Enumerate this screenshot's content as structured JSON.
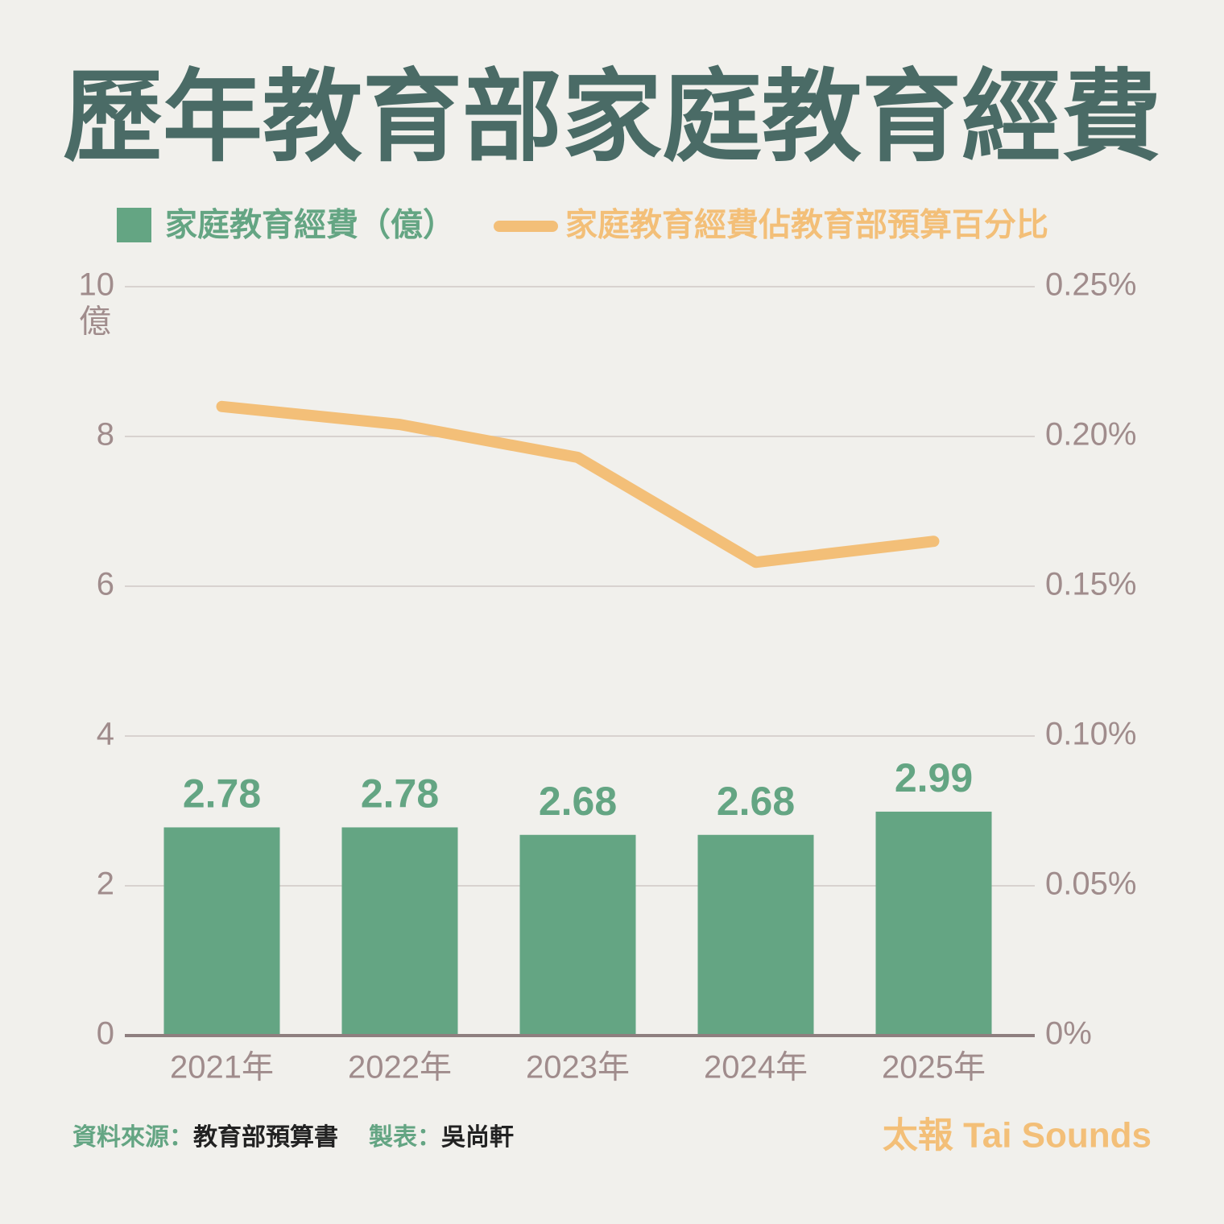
{
  "chart_data": {
    "type": "bar-line",
    "title": "歷年教育部家庭教育經費",
    "categories": [
      "2021年",
      "2022年",
      "2023年",
      "2024年",
      "2025年"
    ],
    "series": [
      {
        "name": "家庭教育經費（億）",
        "type": "bar",
        "color": "#64a583",
        "values": [
          2.78,
          2.78,
          2.68,
          2.68,
          2.99
        ]
      },
      {
        "name": "家庭教育經費佔教育部預算百分比",
        "type": "line",
        "axis": "y2",
        "color": "#f3bf78",
        "values": [
          0.21,
          0.204,
          0.193,
          0.158,
          0.165
        ]
      }
    ],
    "ylim": [
      0,
      10
    ],
    "yticks": [
      0,
      2,
      4,
      6,
      8,
      10
    ],
    "y_unit": "億",
    "y2lim": [
      0,
      0.25
    ],
    "y2ticks": [
      {
        "value": 0,
        "label": "0%"
      },
      {
        "value": 0.05,
        "label": "0.05%"
      },
      {
        "value": 0.1,
        "label": "0.10%"
      },
      {
        "value": 0.15,
        "label": "0.15%"
      },
      {
        "value": 0.2,
        "label": "0.20%"
      },
      {
        "value": 0.25,
        "label": "0.25%"
      }
    ],
    "grid": true,
    "source_label": "資料來源：",
    "source": "教育部預算書",
    "author_label": "製表：",
    "author": "吳尚軒",
    "brand": "太報 Tai Sounds"
  }
}
